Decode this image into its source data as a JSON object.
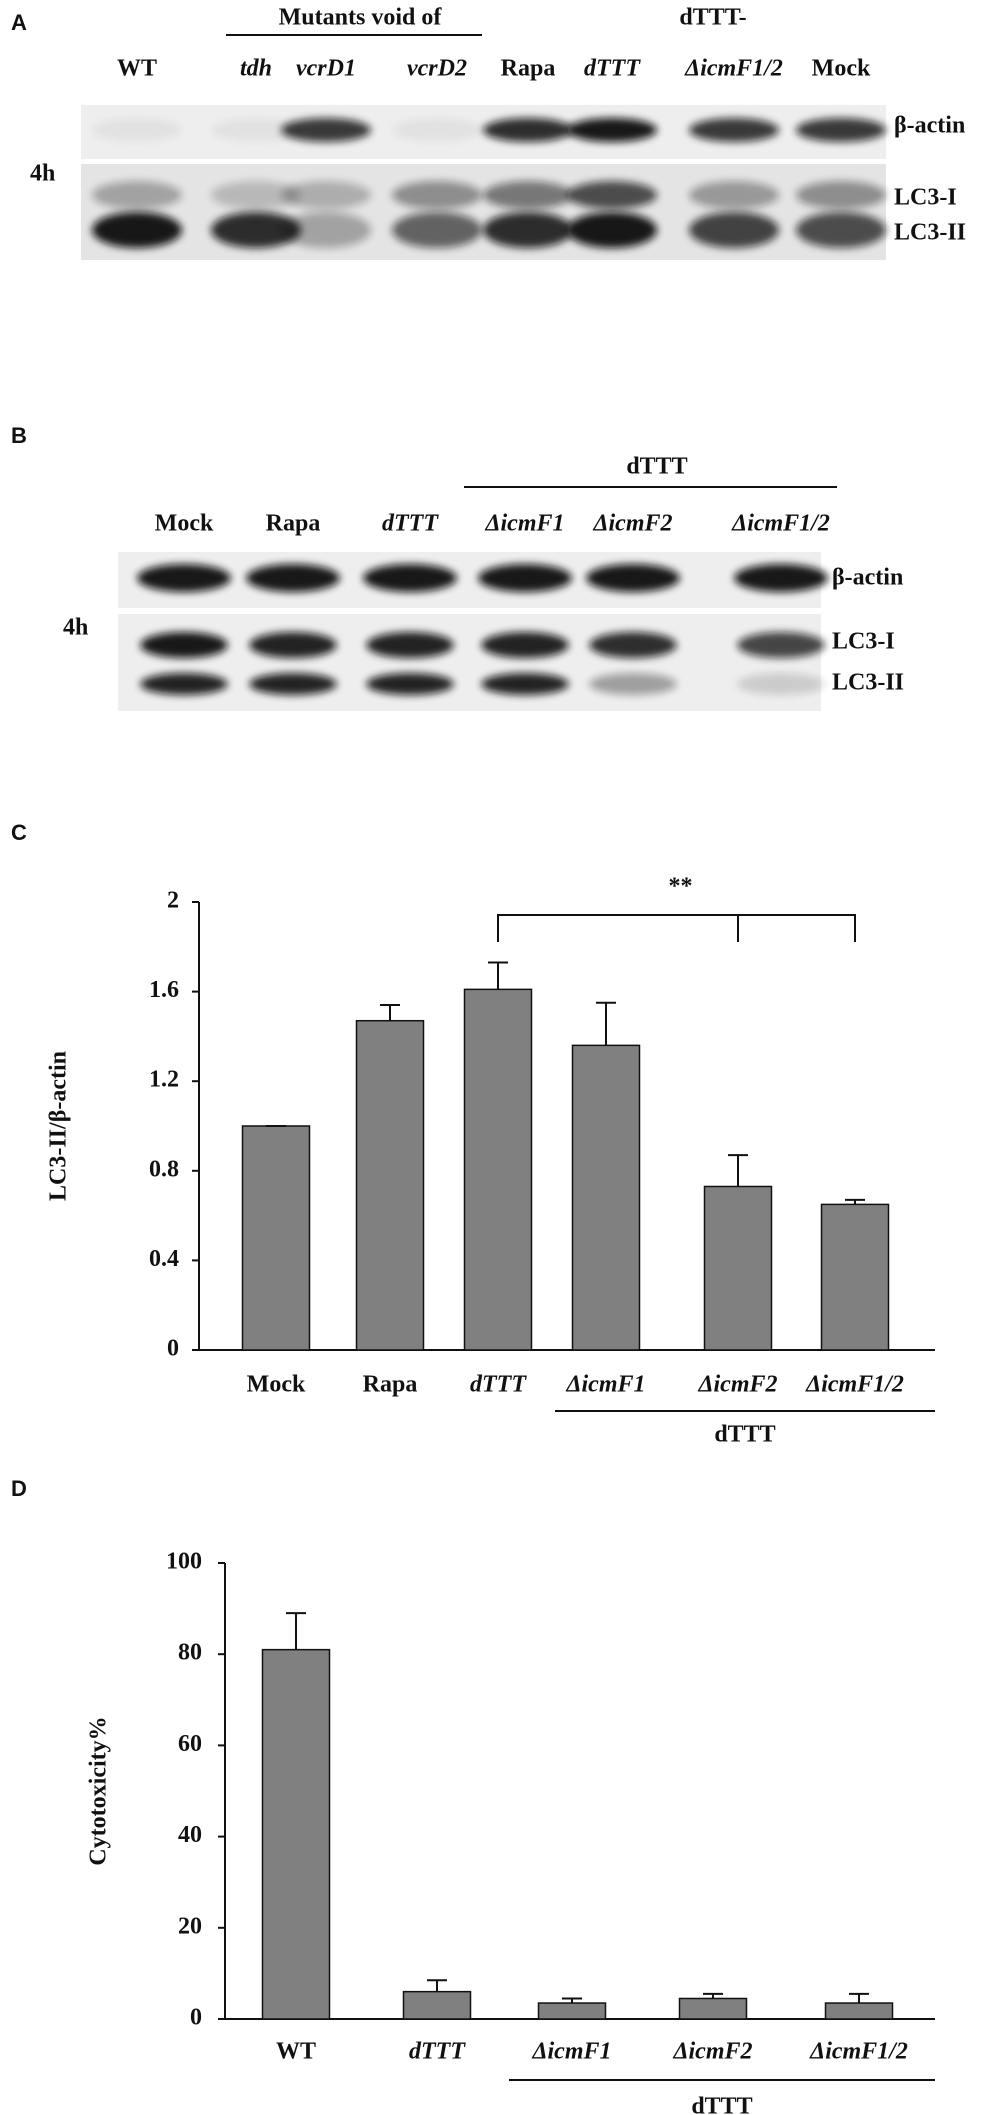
{
  "panel_a": {
    "letter": "A",
    "group_label": "Mutants void of",
    "group2_label": "dTTT-",
    "time": "4h",
    "lanes": [
      "WT",
      "tdh",
      "vcrD1",
      "vcrD2",
      "Rapa",
      "dTTT",
      "ΔicmF1/2",
      "Mock"
    ],
    "bands": [
      "β-actin",
      "LC3-I",
      "LC3-II"
    ]
  },
  "panel_b": {
    "letter": "B",
    "group_label": "dTTT",
    "time": "4h",
    "lanes": [
      "Mock",
      "Rapa",
      "dTTT",
      "ΔicmF1",
      "ΔicmF2",
      "ΔicmF1/2"
    ],
    "bands": [
      "β-actin",
      "LC3-I",
      "LC3-II"
    ]
  },
  "chart_data": [
    {
      "type": "bar",
      "letter": "C",
      "ylabel": "LC3-II/β-actin",
      "categories": [
        "Mock",
        "Rapa",
        "dTTT",
        "ΔicmF1",
        "ΔicmF2",
        "ΔicmF1/2"
      ],
      "values": [
        1.0,
        1.47,
        1.61,
        1.36,
        0.73,
        0.65
      ],
      "errors": [
        0,
        0.07,
        0.12,
        0.19,
        0.14,
        0.02
      ],
      "color": "#808080",
      "ylim": [
        0,
        2
      ],
      "yticks": [
        0,
        0.4,
        0.8,
        1.2,
        1.6,
        2
      ],
      "group_label": "dTTT",
      "annotation": "**"
    },
    {
      "type": "bar",
      "letter": "D",
      "ylabel": "Cytotoxicity%",
      "categories": [
        "WT",
        "dTTT",
        "ΔicmF1",
        "ΔicmF2",
        "ΔicmF1/2"
      ],
      "values": [
        81,
        6,
        3.5,
        4.5,
        3.5
      ],
      "errors": [
        8,
        2.5,
        1,
        1,
        2
      ],
      "color": "#808080",
      "ylim": [
        0,
        100
      ],
      "yticks": [
        0,
        20,
        40,
        60,
        80,
        100
      ],
      "group_label": "dTTT"
    }
  ]
}
